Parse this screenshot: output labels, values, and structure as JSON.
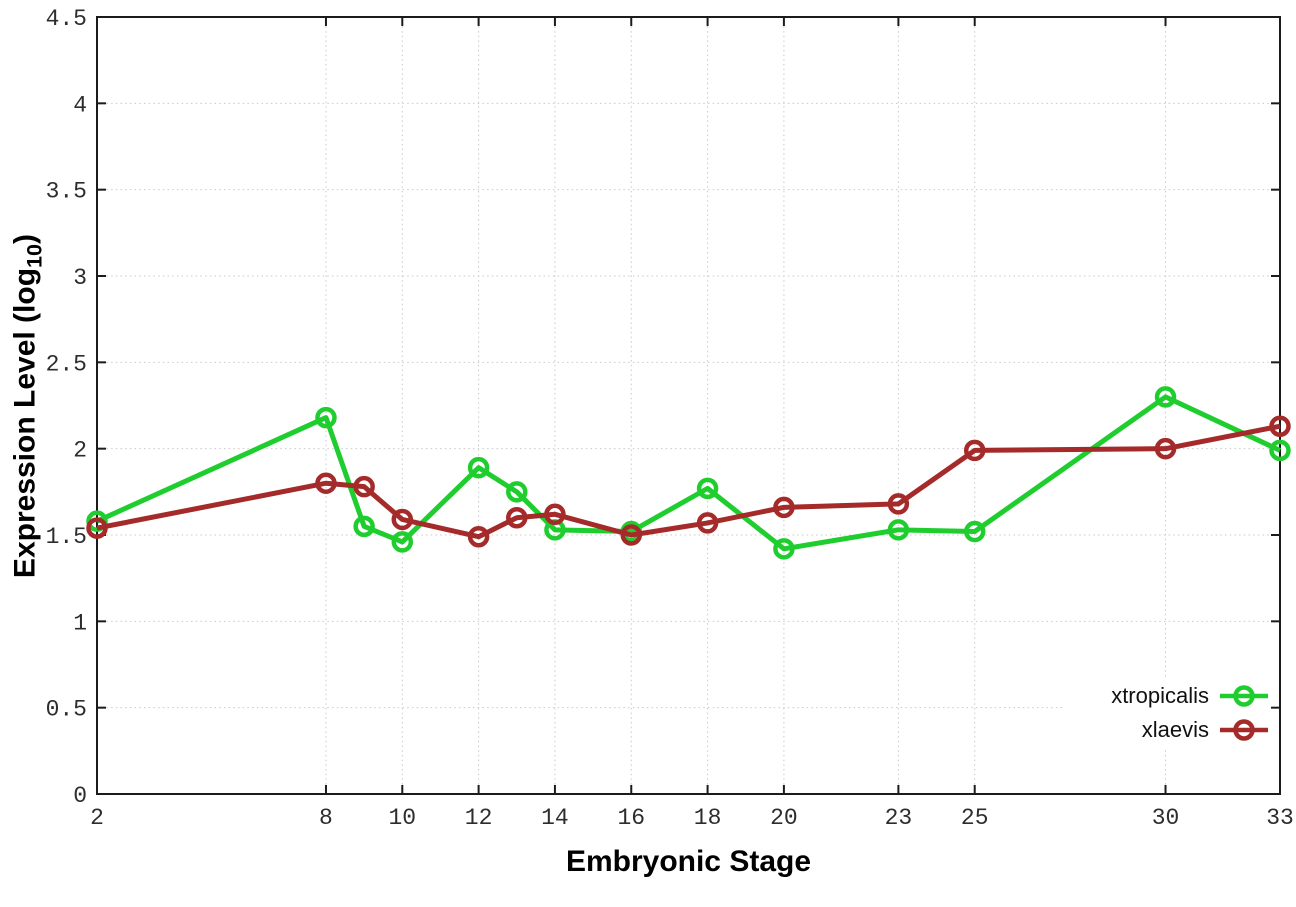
{
  "chart_data": {
    "type": "line",
    "title": "",
    "xlabel": "Embryonic Stage",
    "ylabel": "Expression Level (log10)",
    "ylabel_parts": {
      "prefix": "Expression Level (log",
      "sub": "10",
      "suffix": ")"
    },
    "xlim": [
      2,
      33
    ],
    "ylim": [
      0,
      4.5
    ],
    "x_ticks": [
      2,
      8,
      10,
      12,
      14,
      16,
      18,
      20,
      23,
      25,
      30,
      33
    ],
    "y_ticks": [
      0,
      0.5,
      1,
      1.5,
      2,
      2.5,
      3,
      3.5,
      4,
      4.5
    ],
    "x": [
      2,
      8,
      9,
      10,
      12,
      13,
      14,
      16,
      18,
      20,
      23,
      25,
      30,
      33
    ],
    "series": [
      {
        "name": "xtropicalis",
        "color": "#1fce2e",
        "values": [
          1.58,
          2.18,
          1.55,
          1.46,
          1.89,
          1.75,
          1.53,
          1.52,
          1.77,
          1.42,
          1.53,
          1.52,
          2.3,
          1.99
        ]
      },
      {
        "name": "xlaevis",
        "color": "#a52a2a",
        "values": [
          1.54,
          1.8,
          1.78,
          1.59,
          1.49,
          1.6,
          1.62,
          1.5,
          1.57,
          1.66,
          1.68,
          1.99,
          2.0,
          2.13
        ]
      }
    ],
    "grid": true,
    "legend_position": "inside-bottom-right",
    "marker": "open-circle"
  },
  "styles": {
    "border_color": "#1b1b1b",
    "grid_color": "#c9c9c9",
    "tick_label_color": "#2d2d2d",
    "background": "#ffffff"
  }
}
